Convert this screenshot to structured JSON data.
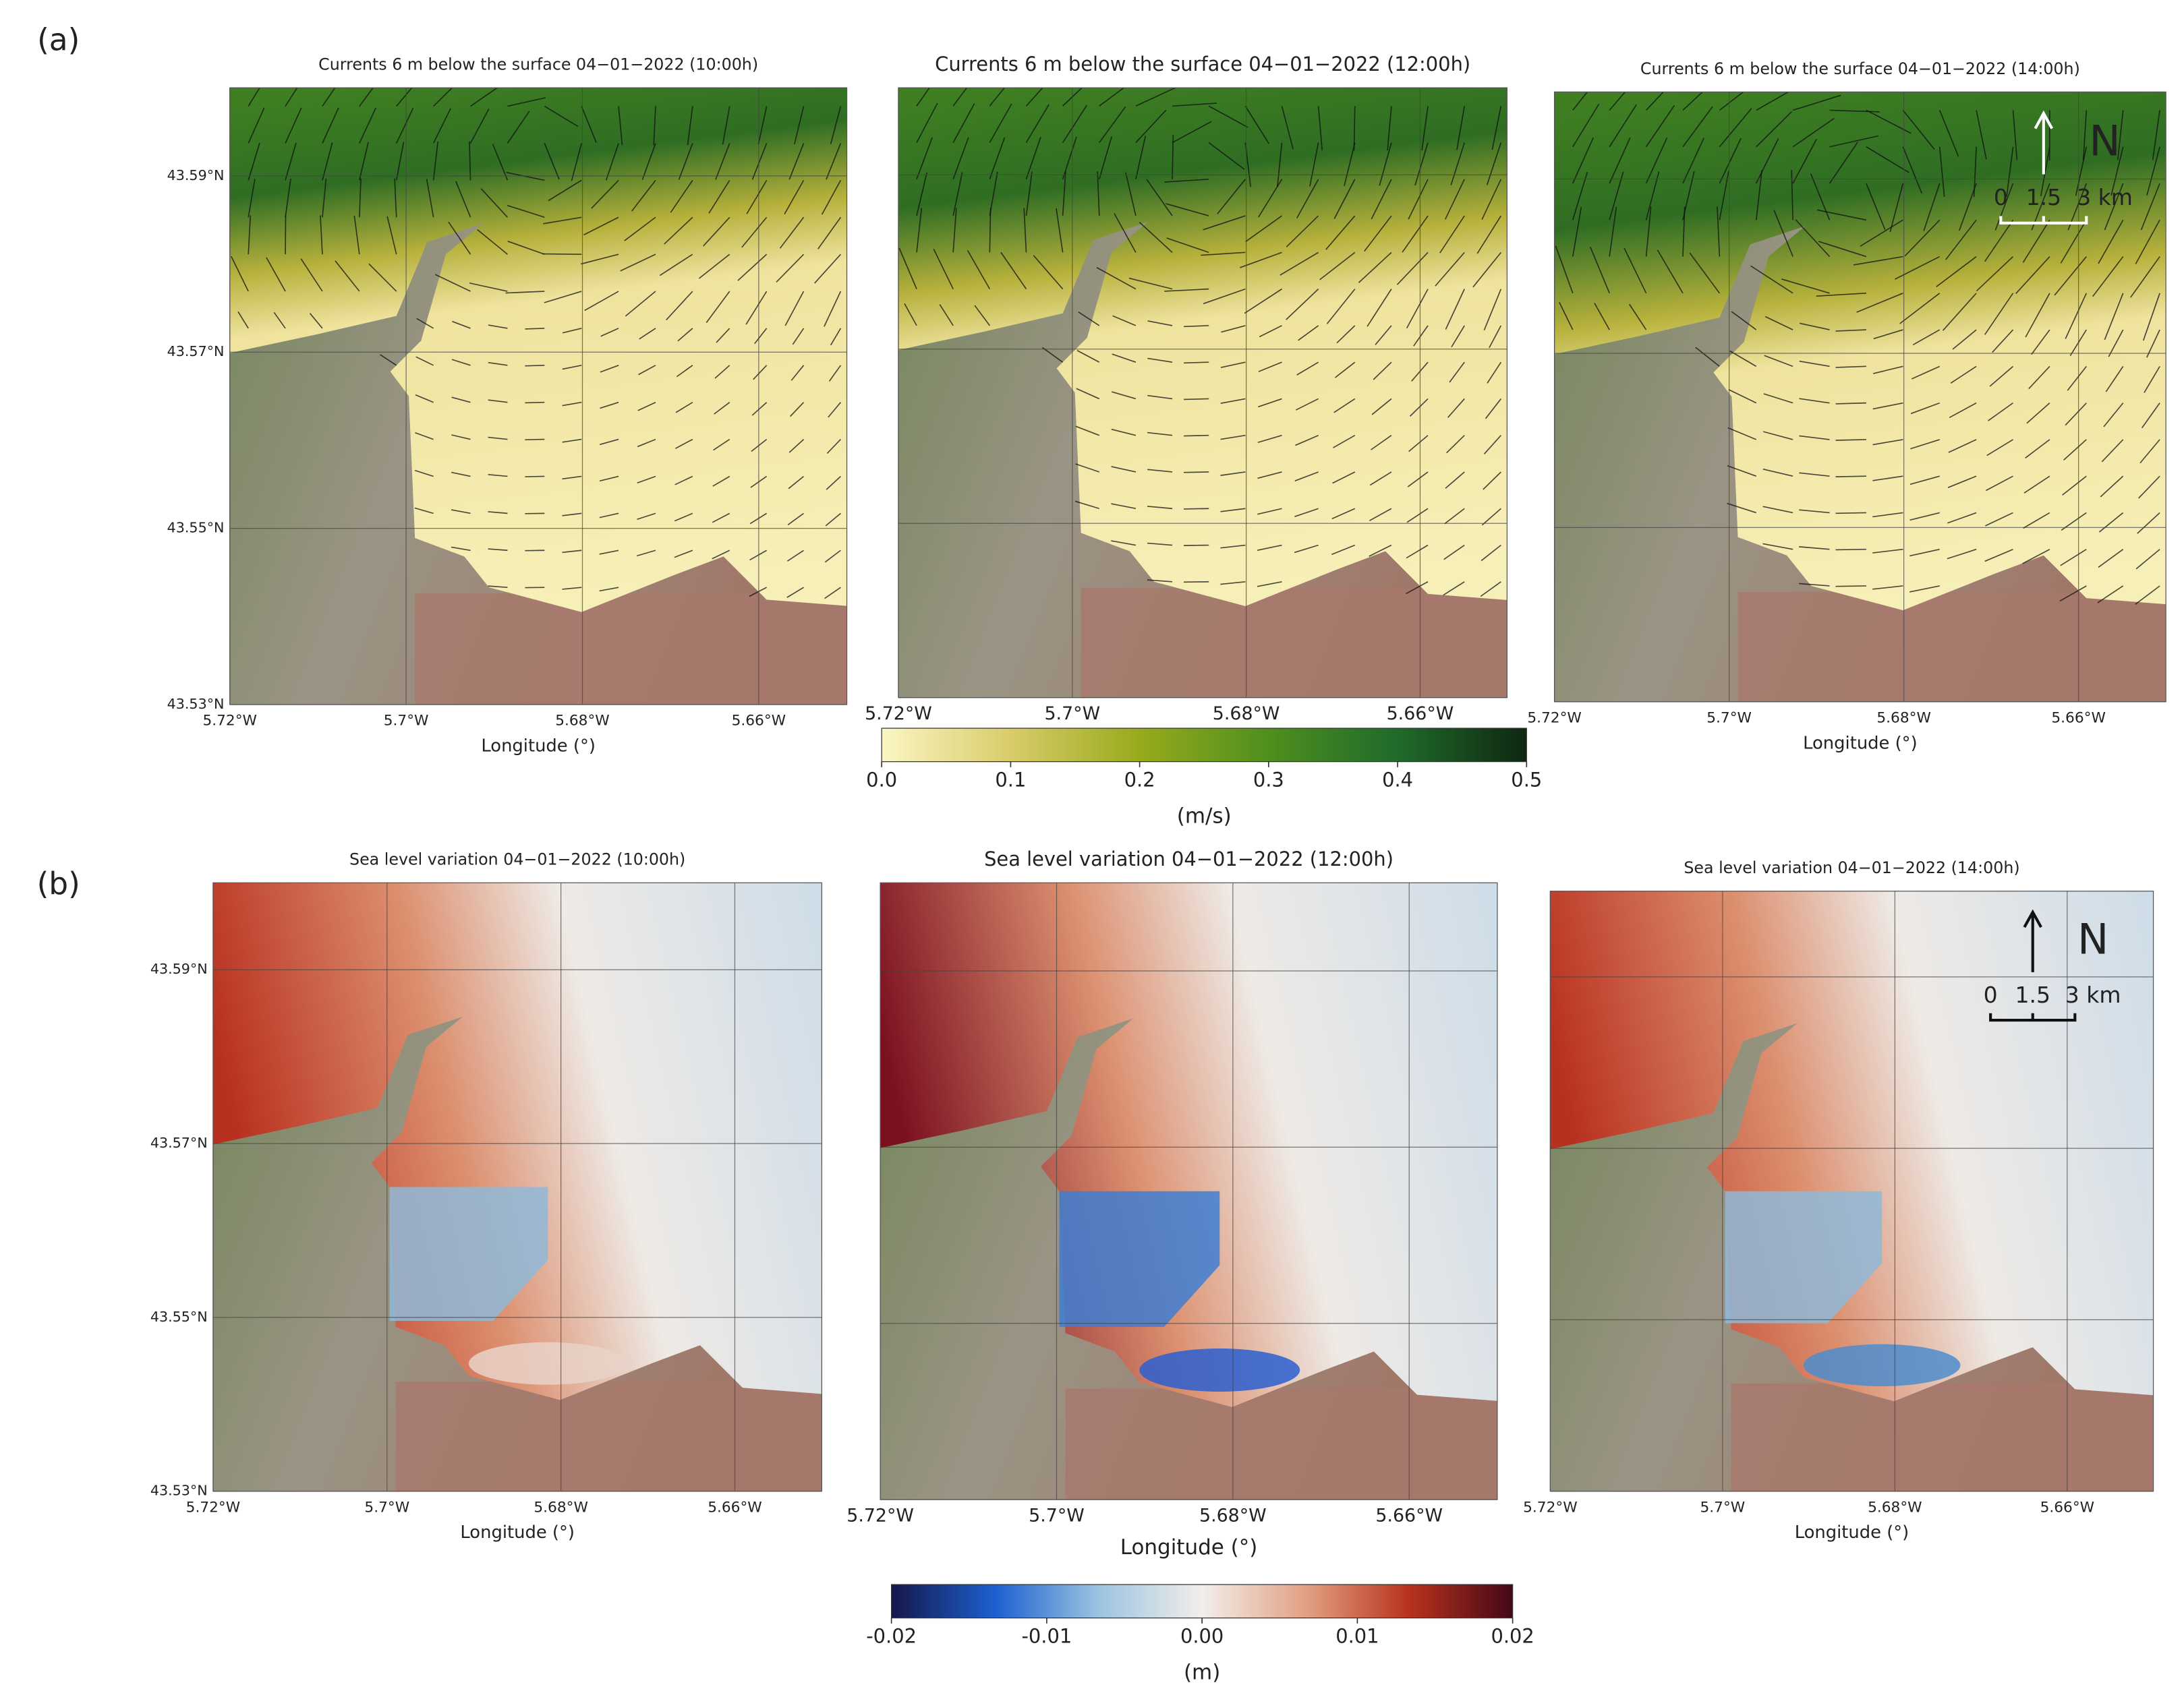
{
  "figure": [
    {
      "label": "(a)",
      "panels": [
        {
          "title": "Currents 6 m below the surface 04−01−2022 (10:00h)",
          "xlabel": "Longitude (°)",
          "ytick_labels": true
        },
        {
          "title": "Currents 6 m below the surface 04−01−2022 (12:00h)",
          "ytick_labels": false
        },
        {
          "title": "Currents 6 m below the surface 04−01−2022 (14:00h)",
          "xlabel": "Longitude (°)",
          "ytick_labels": false,
          "north": "N",
          "scale": [
            "0",
            "1.5",
            "3 km"
          ]
        }
      ],
      "xlim": [
        -5.72,
        -5.65
      ],
      "ylim": [
        43.53,
        43.6
      ],
      "xticks": [
        {
          "value": -5.72,
          "label": "5.72°W"
        },
        {
          "value": -5.7,
          "label": "5.7°W"
        },
        {
          "value": -5.68,
          "label": "5.68°W"
        },
        {
          "value": -5.66,
          "label": "5.66°W"
        }
      ],
      "yticks": [
        {
          "value": 43.53,
          "label": "43.53°N"
        },
        {
          "value": 43.55,
          "label": "43.55°N"
        },
        {
          "value": 43.57,
          "label": "43.57°N"
        },
        {
          "value": 43.59,
          "label": "43.59°N"
        }
      ],
      "colorbar": {
        "label": "(m/s)",
        "lim": [
          0,
          0.5
        ],
        "ticks": [
          {
            "value": 0,
            "label": "0.0"
          },
          0.1,
          0.2,
          0.3,
          0.4,
          0.5
        ],
        "colors": [
          "#fbf6c4",
          "#d8cc6a",
          "#98aa1c",
          "#4f8f1e",
          "#1f6a2a",
          "#0f2712"
        ]
      }
    },
    {
      "label": "(b)",
      "panels": [
        {
          "title": "Sea level variation 04−01−2022 (10:00h)",
          "xlabel": "Longitude (°)",
          "ytick_labels": true
        },
        {
          "title": "Sea level variation 04−01−2022 (12:00h)",
          "xlabel": "Longitude (°)",
          "ytick_labels": false
        },
        {
          "title": "Sea level variation 04−01−2022 (14:00h)",
          "xlabel": "Longitude (°)",
          "ytick_labels": false,
          "north": "N",
          "scale": [
            "0",
            "1.5",
            "3 km"
          ]
        }
      ],
      "xlim": [
        -5.72,
        -5.65
      ],
      "ylim": [
        43.53,
        43.6
      ],
      "xticks": [
        {
          "value": -5.72,
          "label": "5.72°W"
        },
        {
          "value": -5.7,
          "label": "5.7°W"
        },
        {
          "value": -5.68,
          "label": "5.68°W"
        },
        {
          "value": -5.66,
          "label": "5.66°W"
        }
      ],
      "yticks": [
        {
          "value": 43.53,
          "label": "43.53°N"
        },
        {
          "value": 43.55,
          "label": "43.55°N"
        },
        {
          "value": 43.57,
          "label": "43.57°N"
        },
        {
          "value": 43.59,
          "label": "43.59°N"
        }
      ],
      "colorbar": {
        "label": "(m)",
        "lim": [
          -0.02,
          0.02
        ],
        "ticks": [
          -0.02,
          -0.01,
          {
            "value": 0,
            "label": "0.00"
          },
          0.01,
          0.02
        ],
        "colors": [
          "#14184a",
          "#1d5fd0",
          "#9cc4e0",
          "#f2eeea",
          "#e2a183",
          "#b8321e",
          "#430816"
        ]
      }
    }
  ]
}
